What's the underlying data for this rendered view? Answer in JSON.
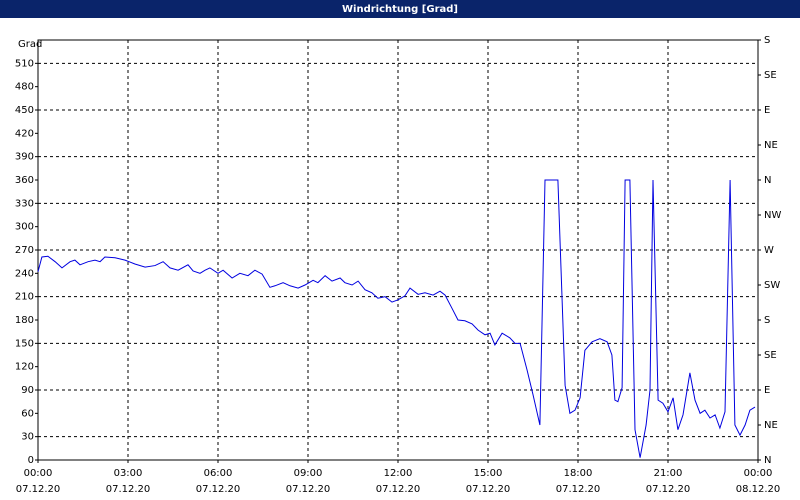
{
  "chart_data": {
    "type": "line",
    "title": "Windrichtung [Grad]",
    "y_label": "Grad",
    "xlim": [
      0,
      24
    ],
    "xticks": [
      {
        "value": 0,
        "label": "00:00",
        "date": "07.12.20"
      },
      {
        "value": 3,
        "label": "03:00",
        "date": "07.12.20"
      },
      {
        "value": 6,
        "label": "06:00",
        "date": "07.12.20"
      },
      {
        "value": 9,
        "label": "09:00",
        "date": "07.12.20"
      },
      {
        "value": 12,
        "label": "12:00",
        "date": "07.12.20"
      },
      {
        "value": 15,
        "label": "15:00",
        "date": "07.12.20"
      },
      {
        "value": 18,
        "label": "18:00",
        "date": "07.12.20"
      },
      {
        "value": 21,
        "label": "21:00",
        "date": "07.12.20"
      },
      {
        "value": 24,
        "label": "00:00",
        "date": "08.12.20"
      }
    ],
    "ylim": [
      0,
      540
    ],
    "yticks": [
      0,
      30,
      60,
      90,
      120,
      150,
      180,
      210,
      240,
      270,
      300,
      330,
      360,
      390,
      420,
      450,
      480,
      510
    ],
    "y2lim": [
      0,
      540
    ],
    "y2ticks": [
      {
        "value": 0,
        "label": "N"
      },
      {
        "value": 45,
        "label": "NE"
      },
      {
        "value": 90,
        "label": "E"
      },
      {
        "value": 135,
        "label": "SE"
      },
      {
        "value": 180,
        "label": "S"
      },
      {
        "value": 225,
        "label": "SW"
      },
      {
        "value": 270,
        "label": "W"
      },
      {
        "value": 315,
        "label": "NW"
      },
      {
        "value": 360,
        "label": "N"
      },
      {
        "value": 405,
        "label": "NE"
      },
      {
        "value": 450,
        "label": "E"
      },
      {
        "value": 495,
        "label": "SE"
      },
      {
        "value": 540,
        "label": "S"
      }
    ],
    "grid": true,
    "color": "#0000e0",
    "x": [
      0,
      0.13,
      0.33,
      0.57,
      0.8,
      1.07,
      1.23,
      1.4,
      1.67,
      1.9,
      2.07,
      2.23,
      2.57,
      2.9,
      3.23,
      3.57,
      3.9,
      4.17,
      4.4,
      4.67,
      5,
      5.17,
      5.4,
      5.57,
      5.73,
      6,
      6.17,
      6.47,
      6.73,
      7,
      7.23,
      7.47,
      7.73,
      7.9,
      8.17,
      8.4,
      8.67,
      8.9,
      9.17,
      9.33,
      9.57,
      9.8,
      10.07,
      10.23,
      10.47,
      10.67,
      10.9,
      11.13,
      11.33,
      11.57,
      11.8,
      12,
      12.23,
      12.4,
      12.67,
      12.9,
      13.17,
      13.4,
      13.57,
      13.8,
      14,
      14.23,
      14.47,
      14.67,
      14.9,
      15.07,
      15.23,
      15.47,
      15.73,
      15.9,
      16.07,
      16.3,
      16.5,
      16.73,
      16.9,
      17.33,
      17.57,
      17.73,
      17.9,
      18.07,
      18.23,
      18.47,
      18.73,
      18.97,
      19.13,
      19.23,
      19.33,
      19.47,
      19.57,
      19.73,
      19.9,
      20.07,
      20.27,
      20.4,
      20.5,
      20.67,
      20.83,
      21,
      21.17,
      21.33,
      21.5,
      21.73,
      21.9,
      22.07,
      22.23,
      22.4,
      22.57,
      22.73,
      22.9,
      23.07,
      23.23,
      23.4,
      23.57,
      23.73,
      23.9
    ],
    "values": [
      242,
      261,
      262,
      255,
      247,
      255,
      257,
      251,
      255,
      257,
      255,
      261,
      260,
      257,
      252,
      248,
      250,
      255,
      247,
      244,
      251,
      243,
      240,
      244,
      247,
      240,
      244,
      234,
      240,
      237,
      244,
      239,
      222,
      224,
      228,
      224,
      221,
      225,
      231,
      228,
      237,
      230,
      234,
      228,
      225,
      230,
      219,
      215,
      208,
      210,
      203,
      206,
      211,
      221,
      213,
      215,
      212,
      217,
      212,
      195,
      180,
      179,
      175,
      167,
      161,
      163,
      148,
      163,
      157,
      150,
      150,
      116,
      84,
      45,
      360,
      360,
      96,
      60,
      64,
      80,
      141,
      152,
      156,
      152,
      135,
      77,
      75,
      93,
      360,
      360,
      39,
      3,
      45,
      90,
      360,
      77,
      73,
      62,
      80,
      39,
      58,
      112,
      77,
      60,
      64,
      54,
      58,
      41,
      62,
      360,
      45,
      32,
      45,
      64,
      68
    ]
  }
}
